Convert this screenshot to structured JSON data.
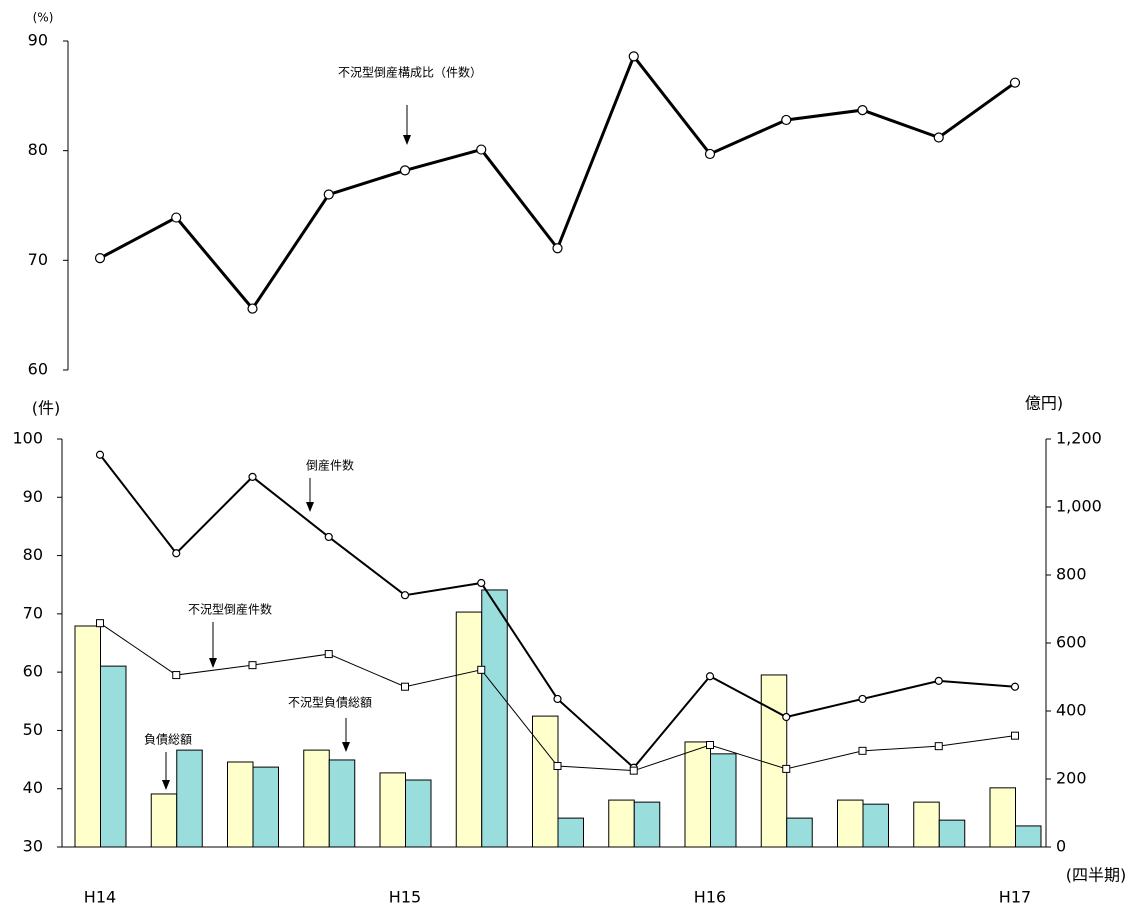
{
  "chart_data": [
    {
      "type": "line",
      "y_label": "(%)",
      "ylim": [
        60,
        90
      ],
      "yticks": [
        60,
        70,
        80,
        90
      ],
      "series": [
        {
          "name": "不況型倒産構成比（件数）",
          "color": "#000000",
          "values": [
            70.2,
            73.9,
            65.6,
            76.0,
            78.2,
            80.1,
            71.1,
            88.6,
            79.7,
            82.8,
            83.7,
            81.2,
            86.2
          ]
        }
      ]
    },
    {
      "type": "bar-line",
      "y_label": "(件)",
      "y2_label": "億円)",
      "x_label": "(四半期)",
      "categories": [
        "H14",
        null,
        null,
        null,
        "H15",
        null,
        null,
        null,
        "H16",
        null,
        null,
        null,
        "H17"
      ],
      "ylim": [
        30,
        100
      ],
      "yticks": [
        30,
        40,
        50,
        60,
        70,
        80,
        90,
        100
      ],
      "y2lim": [
        0,
        1200
      ],
      "y2ticks": [
        0,
        200,
        400,
        600,
        800,
        {
          "value": 1000,
          "label": "1,000"
        },
        {
          "value": 1200,
          "label": "1,200"
        }
      ],
      "series": [
        {
          "name": "負債総額",
          "type": "bar",
          "axis": "y2",
          "color": "#ffffcc",
          "values": [
            650,
            156,
            250,
            285,
            218,
            691,
            385,
            138,
            309,
            506,
            138,
            132,
            174
          ]
        },
        {
          "name": "不況型負債総額",
          "type": "bar",
          "axis": "y2",
          "color": "#99dddd",
          "values": [
            532,
            285,
            235,
            256,
            197,
            756,
            85,
            132,
            274,
            85,
            126,
            79,
            62
          ]
        },
        {
          "name": "倒産件数",
          "type": "line",
          "marker": "circle",
          "color": "#000000",
          "values": [
            97.3,
            80.4,
            93.5,
            83.2,
            73.2,
            75.3,
            55.4,
            43.6,
            59.3,
            52.3,
            55.4,
            58.5,
            57.5
          ]
        },
        {
          "name": "不況型倒産件数",
          "type": "line",
          "marker": "square",
          "color": "#000000",
          "values": [
            68.4,
            59.5,
            61.2,
            63.1,
            57.5,
            60.4,
            43.9,
            43.1,
            47.5,
            43.4,
            46.5,
            47.3,
            49.1
          ]
        }
      ]
    }
  ]
}
